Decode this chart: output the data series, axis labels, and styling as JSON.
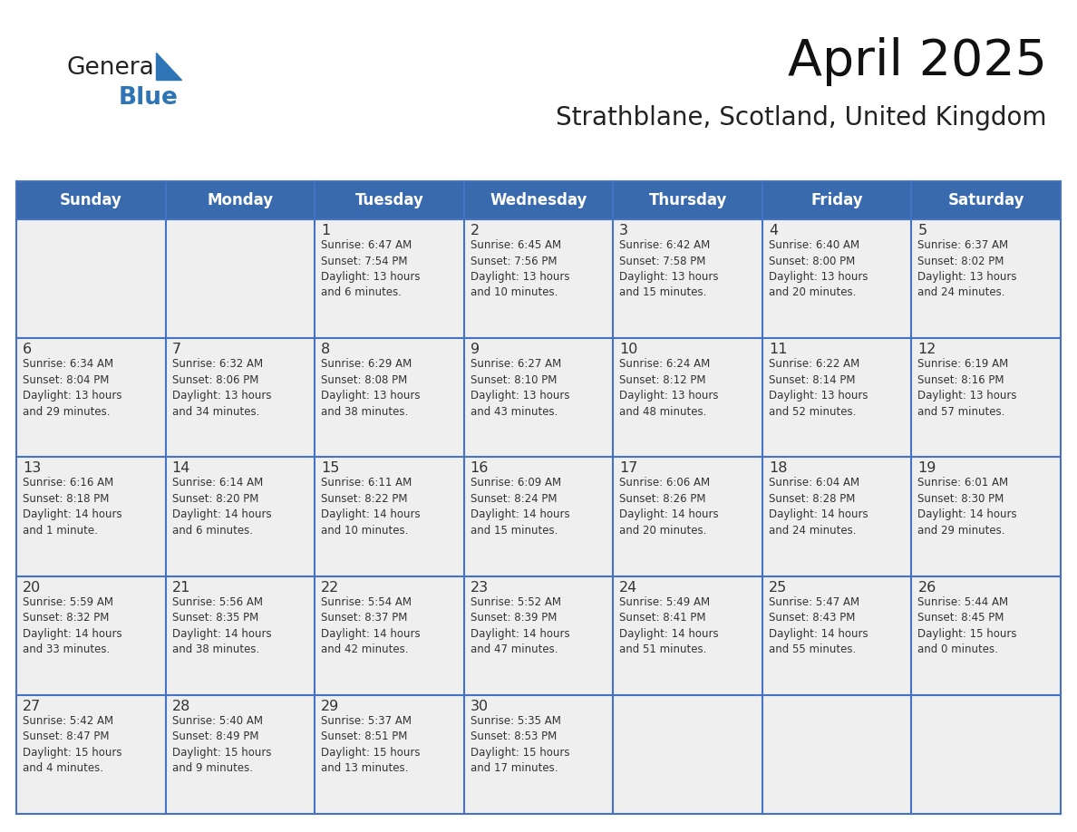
{
  "title": "April 2025",
  "subtitle": "Strathblane, Scotland, United Kingdom",
  "header_bg_color": "#3A6AAE",
  "header_text_color": "#FFFFFF",
  "cell_bg_color": "#EFEFEF",
  "cell_text_color": "#333333",
  "day_number_color": "#333333",
  "grid_line_color": "#4472C4",
  "days_of_week": [
    "Sunday",
    "Monday",
    "Tuesday",
    "Wednesday",
    "Thursday",
    "Friday",
    "Saturday"
  ],
  "weeks": [
    [
      {
        "day": null,
        "info": null
      },
      {
        "day": null,
        "info": null
      },
      {
        "day": 1,
        "info": "Sunrise: 6:47 AM\nSunset: 7:54 PM\nDaylight: 13 hours\nand 6 minutes."
      },
      {
        "day": 2,
        "info": "Sunrise: 6:45 AM\nSunset: 7:56 PM\nDaylight: 13 hours\nand 10 minutes."
      },
      {
        "day": 3,
        "info": "Sunrise: 6:42 AM\nSunset: 7:58 PM\nDaylight: 13 hours\nand 15 minutes."
      },
      {
        "day": 4,
        "info": "Sunrise: 6:40 AM\nSunset: 8:00 PM\nDaylight: 13 hours\nand 20 minutes."
      },
      {
        "day": 5,
        "info": "Sunrise: 6:37 AM\nSunset: 8:02 PM\nDaylight: 13 hours\nand 24 minutes."
      }
    ],
    [
      {
        "day": 6,
        "info": "Sunrise: 6:34 AM\nSunset: 8:04 PM\nDaylight: 13 hours\nand 29 minutes."
      },
      {
        "day": 7,
        "info": "Sunrise: 6:32 AM\nSunset: 8:06 PM\nDaylight: 13 hours\nand 34 minutes."
      },
      {
        "day": 8,
        "info": "Sunrise: 6:29 AM\nSunset: 8:08 PM\nDaylight: 13 hours\nand 38 minutes."
      },
      {
        "day": 9,
        "info": "Sunrise: 6:27 AM\nSunset: 8:10 PM\nDaylight: 13 hours\nand 43 minutes."
      },
      {
        "day": 10,
        "info": "Sunrise: 6:24 AM\nSunset: 8:12 PM\nDaylight: 13 hours\nand 48 minutes."
      },
      {
        "day": 11,
        "info": "Sunrise: 6:22 AM\nSunset: 8:14 PM\nDaylight: 13 hours\nand 52 minutes."
      },
      {
        "day": 12,
        "info": "Sunrise: 6:19 AM\nSunset: 8:16 PM\nDaylight: 13 hours\nand 57 minutes."
      }
    ],
    [
      {
        "day": 13,
        "info": "Sunrise: 6:16 AM\nSunset: 8:18 PM\nDaylight: 14 hours\nand 1 minute."
      },
      {
        "day": 14,
        "info": "Sunrise: 6:14 AM\nSunset: 8:20 PM\nDaylight: 14 hours\nand 6 minutes."
      },
      {
        "day": 15,
        "info": "Sunrise: 6:11 AM\nSunset: 8:22 PM\nDaylight: 14 hours\nand 10 minutes."
      },
      {
        "day": 16,
        "info": "Sunrise: 6:09 AM\nSunset: 8:24 PM\nDaylight: 14 hours\nand 15 minutes."
      },
      {
        "day": 17,
        "info": "Sunrise: 6:06 AM\nSunset: 8:26 PM\nDaylight: 14 hours\nand 20 minutes."
      },
      {
        "day": 18,
        "info": "Sunrise: 6:04 AM\nSunset: 8:28 PM\nDaylight: 14 hours\nand 24 minutes."
      },
      {
        "day": 19,
        "info": "Sunrise: 6:01 AM\nSunset: 8:30 PM\nDaylight: 14 hours\nand 29 minutes."
      }
    ],
    [
      {
        "day": 20,
        "info": "Sunrise: 5:59 AM\nSunset: 8:32 PM\nDaylight: 14 hours\nand 33 minutes."
      },
      {
        "day": 21,
        "info": "Sunrise: 5:56 AM\nSunset: 8:35 PM\nDaylight: 14 hours\nand 38 minutes."
      },
      {
        "day": 22,
        "info": "Sunrise: 5:54 AM\nSunset: 8:37 PM\nDaylight: 14 hours\nand 42 minutes."
      },
      {
        "day": 23,
        "info": "Sunrise: 5:52 AM\nSunset: 8:39 PM\nDaylight: 14 hours\nand 47 minutes."
      },
      {
        "day": 24,
        "info": "Sunrise: 5:49 AM\nSunset: 8:41 PM\nDaylight: 14 hours\nand 51 minutes."
      },
      {
        "day": 25,
        "info": "Sunrise: 5:47 AM\nSunset: 8:43 PM\nDaylight: 14 hours\nand 55 minutes."
      },
      {
        "day": 26,
        "info": "Sunrise: 5:44 AM\nSunset: 8:45 PM\nDaylight: 15 hours\nand 0 minutes."
      }
    ],
    [
      {
        "day": 27,
        "info": "Sunrise: 5:42 AM\nSunset: 8:47 PM\nDaylight: 15 hours\nand 4 minutes."
      },
      {
        "day": 28,
        "info": "Sunrise: 5:40 AM\nSunset: 8:49 PM\nDaylight: 15 hours\nand 9 minutes."
      },
      {
        "day": 29,
        "info": "Sunrise: 5:37 AM\nSunset: 8:51 PM\nDaylight: 15 hours\nand 13 minutes."
      },
      {
        "day": 30,
        "info": "Sunrise: 5:35 AM\nSunset: 8:53 PM\nDaylight: 15 hours\nand 17 minutes."
      },
      {
        "day": null,
        "info": null
      },
      {
        "day": null,
        "info": null
      },
      {
        "day": null,
        "info": null
      }
    ]
  ],
  "logo_general_color": "#222222",
  "logo_blue_color": "#2E75B6",
  "logo_triangle_color": "#2E75B6",
  "fig_width": 11.88,
  "fig_height": 9.18,
  "dpi": 100
}
